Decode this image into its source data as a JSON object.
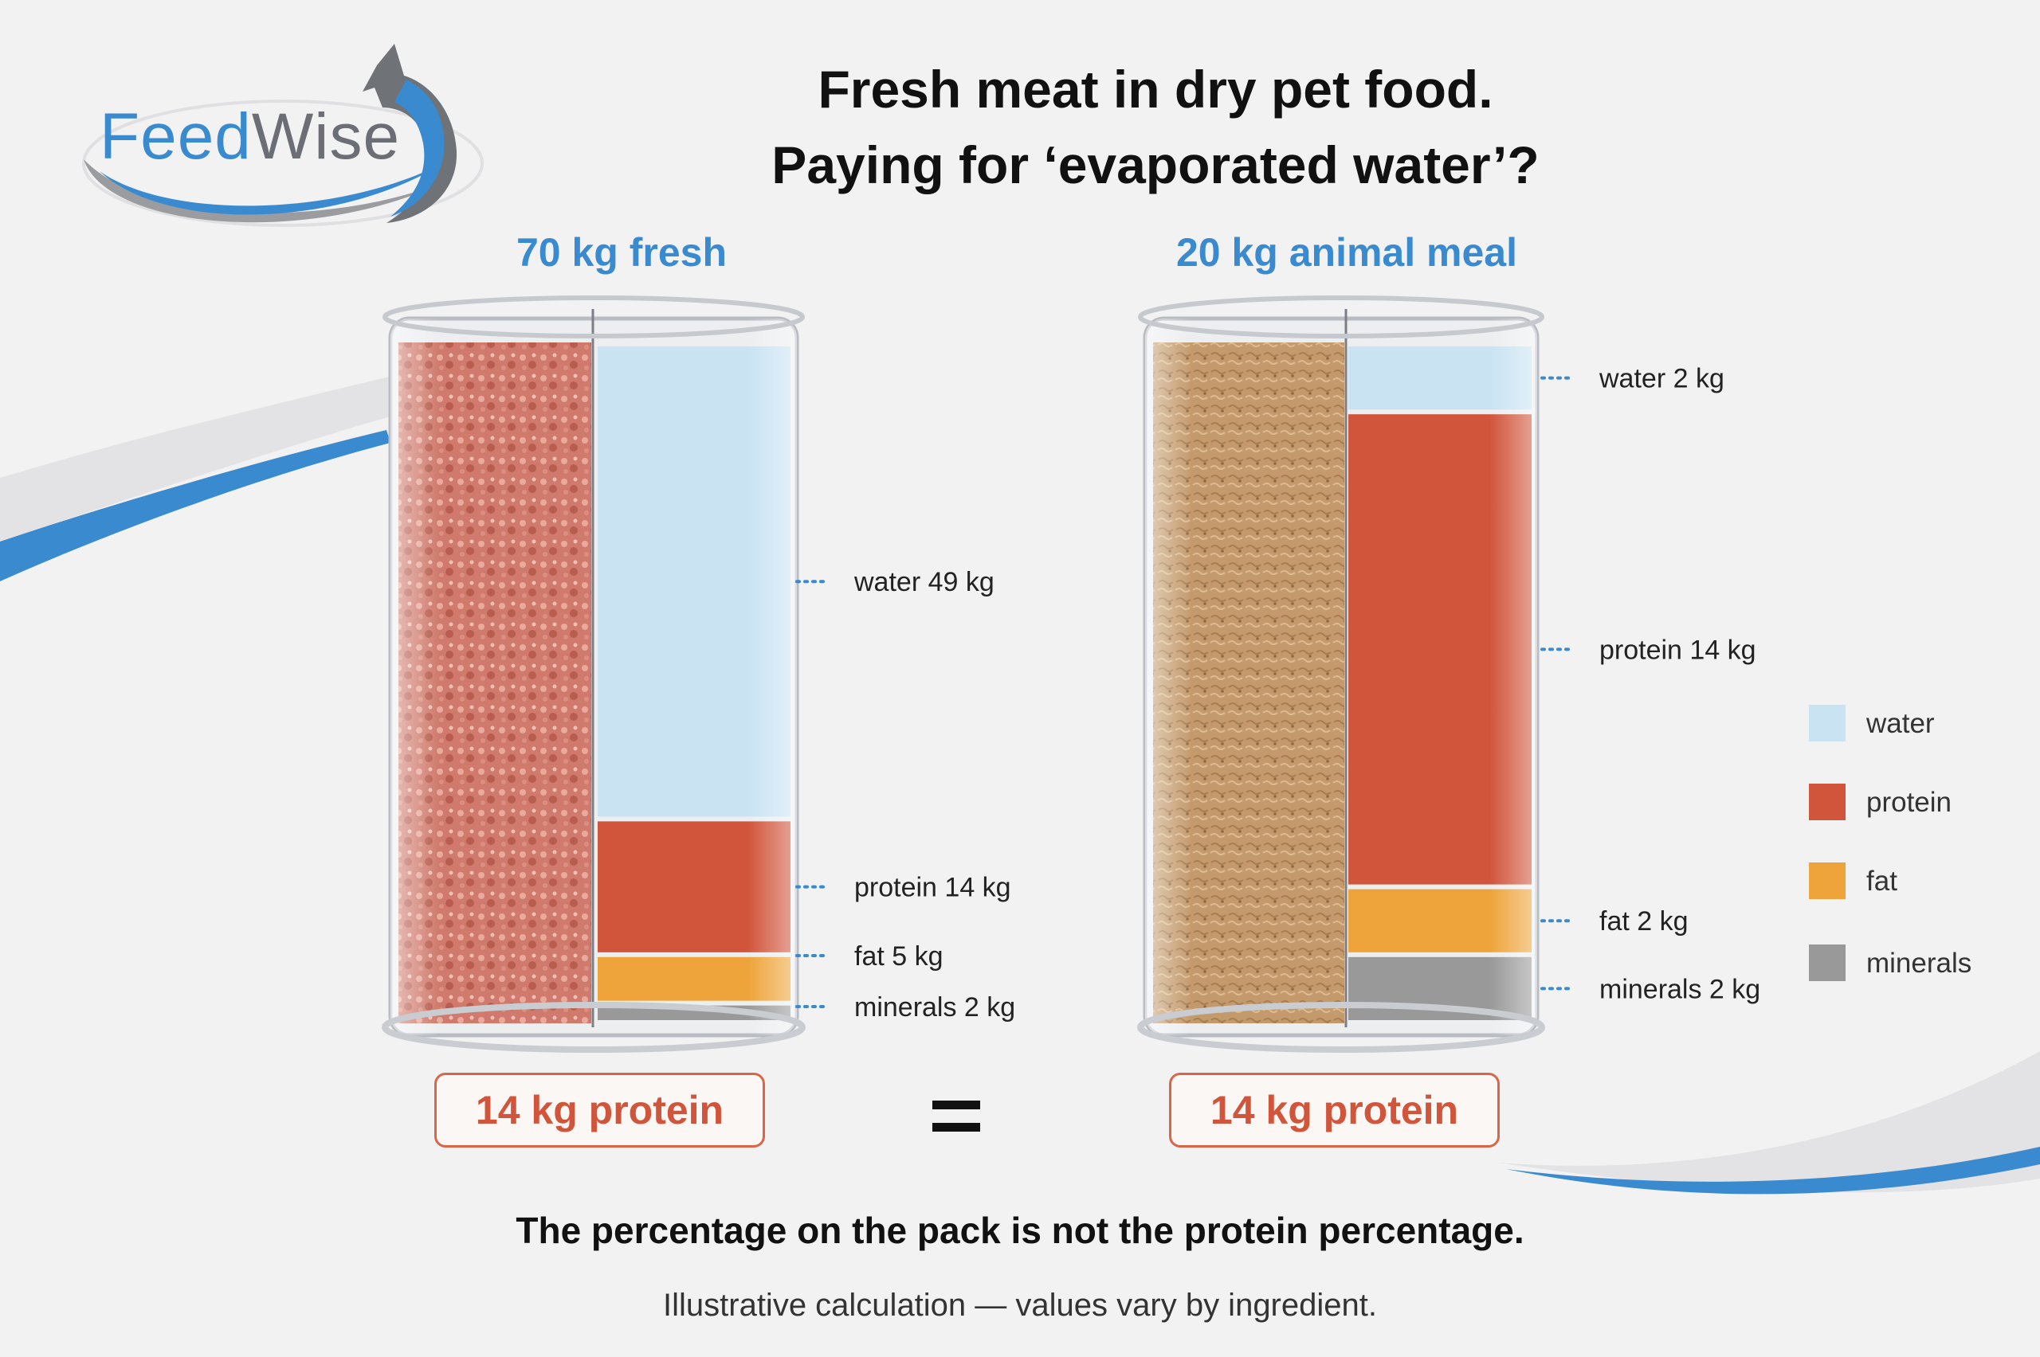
{
  "logo": {
    "part1": "Feed",
    "part2": "Wise"
  },
  "title": {
    "line1": "Fresh meat in dry pet food.",
    "line2": "Paying for ‘evaporated water’?"
  },
  "columns": {
    "left_title": "70 kg fresh",
    "right_title": "20 kg animal meal"
  },
  "badges": {
    "left": "14 kg protein",
    "right": "14 kg protein",
    "equals": "="
  },
  "footer": {
    "main": "The percentage on the pack is not the protein percentage.",
    "note": "Illustrative calculation — values vary by ingredient."
  },
  "colors": {
    "accent": "#3a8ad0",
    "water": "#c9e3f3",
    "protein": "#d1553b",
    "fat": "#eea43a",
    "minerals": "#999999",
    "fresh_meat": "#cf7a6c",
    "meal": "#c49a6c"
  },
  "chart_data": {
    "type": "bar",
    "stacked": true,
    "categories": [
      "70 kg fresh",
      "20 kg animal meal"
    ],
    "series": [
      {
        "name": "water",
        "values": [
          49,
          2
        ],
        "labels": [
          "water 49 kg",
          "water 2 kg"
        ],
        "color": "#c9e3f3"
      },
      {
        "name": "protein",
        "values": [
          14,
          14
        ],
        "labels": [
          "protein 14 kg",
          "protein 14 kg"
        ],
        "color": "#d1553b"
      },
      {
        "name": "fat",
        "values": [
          5,
          2
        ],
        "labels": [
          "fat 5 kg",
          "fat 2 kg"
        ],
        "color": "#eea43a"
      },
      {
        "name": "minerals",
        "values": [
          2,
          2
        ],
        "labels": [
          "minerals 2 kg",
          "minerals 2 kg"
        ],
        "color": "#999999"
      }
    ],
    "legend": [
      "water",
      "protein",
      "fat",
      "minerals"
    ],
    "legend_position": "right"
  }
}
